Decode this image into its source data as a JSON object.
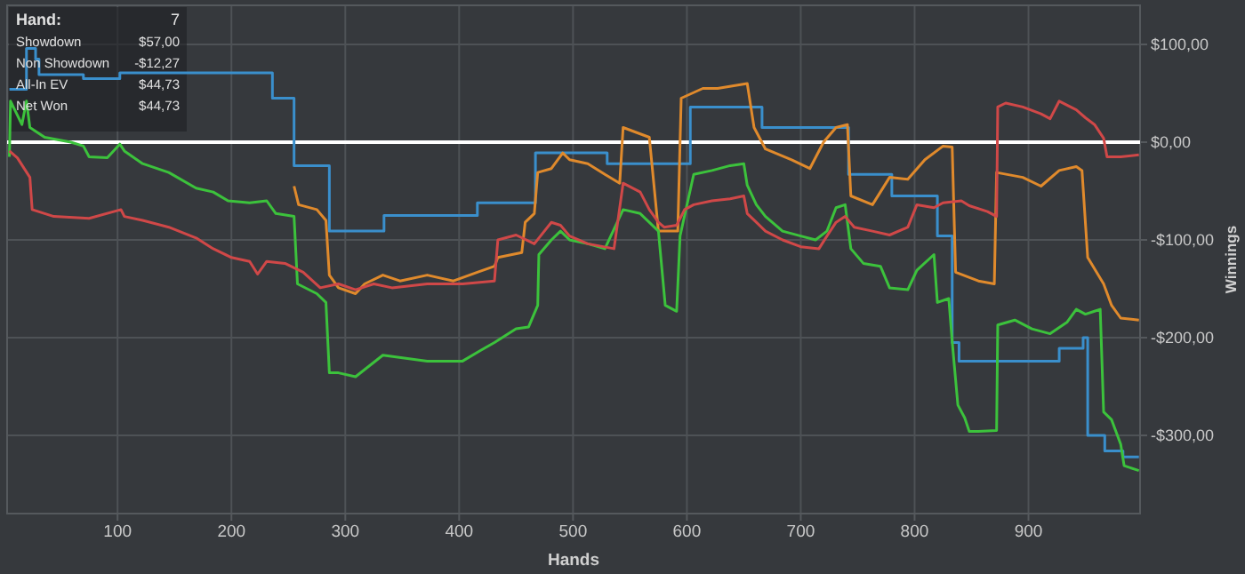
{
  "chart_data": {
    "type": "line",
    "xlabel": "Hands",
    "ylabel": "Winnings",
    "xlim": [
      3,
      998
    ],
    "ylim": [
      -380,
      140
    ],
    "xticks": [
      100,
      200,
      300,
      400,
      500,
      600,
      700,
      800,
      900
    ],
    "yticks": [
      {
        "value": 100,
        "label": "$100,00"
      },
      {
        "value": 0,
        "label": "$0,00"
      },
      {
        "value": -100,
        "label": "-$100,00"
      },
      {
        "value": -200,
        "label": "-$200,00"
      },
      {
        "value": -300,
        "label": "-$300,00"
      }
    ],
    "grid": true,
    "marker": "none",
    "line_style": "solid",
    "ref_lines": [
      {
        "axis": "y",
        "value": 0,
        "color": "#ffffff"
      }
    ],
    "annotations": [
      "Hand:",
      "7",
      "Showdown",
      "$57,00",
      "Non Showdown",
      "-$12,27",
      "All-In EV",
      "$44,73",
      "Net Won",
      "$44,73"
    ],
    "series": [
      {
        "type": "step",
        "color": "#3a8fcc",
        "x": [
          5,
          20,
          28,
          31,
          70,
          102,
          236,
          255,
          286,
          334,
          416,
          467,
          530,
          603,
          666,
          742,
          780,
          820,
          833,
          839,
          927,
          948,
          952,
          967,
          983,
          997
        ],
        "values": [
          54,
          96,
          85,
          69,
          65,
          71,
          45,
          -24,
          -91,
          -75,
          -62,
          -11,
          -22,
          36,
          15,
          -33,
          -55,
          -96,
          -205,
          -224,
          -211,
          -200,
          -300,
          -316,
          -322,
          -322
        ]
      },
      {
        "color": "#e08a2c",
        "x": [
          255,
          259,
          275,
          283,
          286,
          294,
          309,
          317,
          333,
          348,
          372,
          395,
          416,
          431,
          434,
          455,
          458,
          466,
          469,
          481,
          491,
          497,
          513,
          528,
          541,
          544,
          567,
          575,
          592,
          595,
          614,
          627,
          653,
          659,
          669,
          692,
          708,
          720,
          731,
          741,
          744,
          763,
          778,
          794,
          809,
          825,
          833,
          836,
          856,
          870,
          872,
          895,
          911,
          927,
          942,
          947,
          952,
          966,
          973,
          981,
          997
        ],
        "values": [
          -45,
          -64,
          -69,
          -80,
          -136,
          -149,
          -155,
          -145,
          -136,
          -142,
          -136,
          -142,
          -133,
          -127,
          -118,
          -113,
          -82,
          -73,
          -31,
          -27,
          -11,
          -18,
          -22,
          -33,
          -42,
          15,
          5,
          -91,
          -91,
          45,
          55,
          55,
          60,
          15,
          -7,
          -18,
          -27,
          0,
          15,
          18,
          -55,
          -64,
          -36,
          -38,
          -18,
          -4,
          -5,
          -133,
          -142,
          -145,
          -31,
          -36,
          -45,
          -29,
          -25,
          -29,
          -118,
          -145,
          -167,
          -180,
          -182
        ]
      },
      {
        "color": "#3cc23c",
        "x": [
          5,
          6,
          16,
          20,
          23,
          36,
          59,
          70,
          75,
          91,
          102,
          106,
          122,
          145,
          169,
          184,
          197,
          216,
          231,
          239,
          255,
          258,
          275,
          283,
          286,
          294,
          309,
          333,
          372,
          403,
          419,
          431,
          450,
          461,
          469,
          470,
          481,
          489,
          497,
          513,
          528,
          544,
          559,
          575,
          581,
          591,
          594,
          606,
          622,
          638,
          650,
          653,
          661,
          669,
          684,
          700,
          713,
          723,
          731,
          739,
          744,
          755,
          770,
          778,
          794,
          802,
          817,
          820,
          830,
          833,
          838,
          844,
          848,
          856,
          872,
          873,
          888,
          903,
          919,
          934,
          942,
          950,
          958,
          963,
          966,
          973,
          981,
          984,
          997
        ],
        "values": [
          -15,
          42,
          18,
          42,
          15,
          5,
          0,
          -4,
          -15,
          -16,
          -2,
          -9,
          -22,
          -31,
          -47,
          -51,
          -60,
          -62,
          -60,
          -73,
          -76,
          -145,
          -155,
          -164,
          -236,
          -236,
          -240,
          -218,
          -224,
          -224,
          -213,
          -205,
          -191,
          -189,
          -167,
          -115,
          -100,
          -91,
          -100,
          -104,
          -109,
          -69,
          -73,
          -91,
          -167,
          -173,
          -96,
          -33,
          -29,
          -24,
          -22,
          -44,
          -64,
          -76,
          -91,
          -96,
          -100,
          -91,
          -67,
          -64,
          -109,
          -124,
          -127,
          -149,
          -151,
          -131,
          -115,
          -164,
          -160,
          -204,
          -269,
          -282,
          -296,
          -296,
          -295,
          -187,
          -182,
          -191,
          -196,
          -184,
          -171,
          -176,
          -173,
          -171,
          -276,
          -284,
          -309,
          -331,
          -336
        ]
      },
      {
        "color": "#d04848",
        "x": [
          5,
          12,
          23,
          25,
          44,
          75,
          103,
          106,
          122,
          145,
          169,
          184,
          200,
          216,
          223,
          231,
          247,
          263,
          278,
          294,
          309,
          325,
          341,
          372,
          403,
          431,
          434,
          450,
          466,
          481,
          489,
          497,
          513,
          536,
          544,
          559,
          567,
          575,
          580,
          591,
          598,
          606,
          622,
          638,
          650,
          653,
          661,
          669,
          684,
          700,
          716,
          723,
          731,
          739,
          747,
          763,
          778,
          794,
          802,
          817,
          825,
          841,
          848,
          864,
          872,
          873,
          880,
          895,
          911,
          919,
          927,
          942,
          950,
          958,
          966,
          969,
          981,
          997
        ],
        "values": [
          -9,
          -16,
          -36,
          -69,
          -76,
          -78,
          -69,
          -76,
          -80,
          -87,
          -98,
          -109,
          -118,
          -122,
          -135,
          -122,
          -124,
          -133,
          -149,
          -145,
          -151,
          -145,
          -149,
          -145,
          -145,
          -142,
          -100,
          -95,
          -104,
          -82,
          -85,
          -96,
          -104,
          -109,
          -42,
          -51,
          -69,
          -82,
          -87,
          -85,
          -69,
          -64,
          -60,
          -58,
          -55,
          -73,
          -82,
          -91,
          -100,
          -107,
          -109,
          -96,
          -82,
          -76,
          -87,
          -91,
          -95,
          -87,
          -64,
          -67,
          -62,
          -60,
          -65,
          -71,
          -76,
          36,
          40,
          36,
          29,
          24,
          42,
          33,
          25,
          18,
          4,
          -15,
          -15,
          -13
        ]
      }
    ]
  }
}
